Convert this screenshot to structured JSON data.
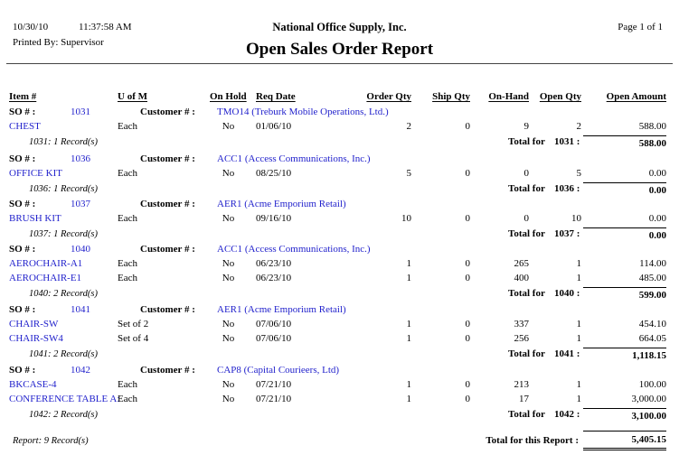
{
  "colors": {
    "link_blue": "#2222CC"
  },
  "header": {
    "date": "10/30/10",
    "time": "11:37:58 AM",
    "printed_by": "Printed By: Supervisor",
    "company": "National Office Supply, Inc.",
    "title": "Open Sales Order Report",
    "page": "Page 1 of 1"
  },
  "table": {
    "headers": [
      "Item #",
      "U of M",
      "On Hold",
      "Req Date",
      "Order Qty",
      "Ship Qty",
      "On-Hand",
      "Open Qty",
      "Open Amount"
    ],
    "labels": {
      "so": "SO # :",
      "customer": "Customer # :",
      "total_for": "Total for"
    },
    "sections": [
      {
        "so": "1031",
        "customer": "TMO14 (Treburk Mobile Operations, Ltd.)",
        "items": [
          {
            "item": "CHEST",
            "uofm": "Each",
            "on_hold": "No",
            "req_date": "01/06/10",
            "order_qty": "2",
            "ship_qty": "0",
            "on_hand": "9",
            "open_qty": "2",
            "open_amount": "588.00"
          }
        ],
        "records": "1031: 1 Record(s)",
        "total_ref": "1031 :",
        "total": "588.00"
      },
      {
        "so": "1036",
        "customer": "ACC1 (Access Communications, Inc.)",
        "items": [
          {
            "item": "OFFICE KIT",
            "uofm": "Each",
            "on_hold": "No",
            "req_date": "08/25/10",
            "order_qty": "5",
            "ship_qty": "0",
            "on_hand": "0",
            "open_qty": "5",
            "open_amount": "0.00"
          }
        ],
        "records": "1036: 1 Record(s)",
        "total_ref": "1036 :",
        "total": "0.00"
      },
      {
        "so": "1037",
        "customer": "AER1 (Acme Emporium Retail)",
        "items": [
          {
            "item": "BRUSH KIT",
            "uofm": "Each",
            "on_hold": "No",
            "req_date": "09/16/10",
            "order_qty": "10",
            "ship_qty": "0",
            "on_hand": "0",
            "open_qty": "10",
            "open_amount": "0.00"
          }
        ],
        "records": "1037: 1 Record(s)",
        "total_ref": "1037 :",
        "total": "0.00"
      },
      {
        "so": "1040",
        "customer": "ACC1 (Access Communications, Inc.)",
        "items": [
          {
            "item": "AEROCHAIR-A1",
            "uofm": "Each",
            "on_hold": "No",
            "req_date": "06/23/10",
            "order_qty": "1",
            "ship_qty": "0",
            "on_hand": "265",
            "open_qty": "1",
            "open_amount": "114.00"
          },
          {
            "item": "AEROCHAIR-E1",
            "uofm": "Each",
            "on_hold": "No",
            "req_date": "06/23/10",
            "order_qty": "1",
            "ship_qty": "0",
            "on_hand": "400",
            "open_qty": "1",
            "open_amount": "485.00"
          }
        ],
        "records": "1040: 2 Record(s)",
        "total_ref": "1040 :",
        "total": "599.00"
      },
      {
        "so": "1041",
        "customer": "AER1 (Acme Emporium Retail)",
        "items": [
          {
            "item": "CHAIR-SW",
            "uofm": "Set of 2",
            "on_hold": "No",
            "req_date": "07/06/10",
            "order_qty": "1",
            "ship_qty": "0",
            "on_hand": "337",
            "open_qty": "1",
            "open_amount": "454.10"
          },
          {
            "item": "CHAIR-SW4",
            "uofm": "Set of 4",
            "on_hold": "No",
            "req_date": "07/06/10",
            "order_qty": "1",
            "ship_qty": "0",
            "on_hand": "256",
            "open_qty": "1",
            "open_amount": "664.05"
          }
        ],
        "records": "1041: 2 Record(s)",
        "total_ref": "1041 :",
        "total": "1,118.15"
      },
      {
        "so": "1042",
        "customer": "CAP8 (Capital Courieers, Ltd)",
        "items": [
          {
            "item": "BKCASE-4",
            "uofm": "Each",
            "on_hold": "No",
            "req_date": "07/21/10",
            "order_qty": "1",
            "ship_qty": "0",
            "on_hand": "213",
            "open_qty": "1",
            "open_amount": "100.00"
          },
          {
            "item": "CONFERENCE TABLE A:",
            "uofm": "Each",
            "on_hold": "No",
            "req_date": "07/21/10",
            "order_qty": "1",
            "ship_qty": "0",
            "on_hand": "17",
            "open_qty": "1",
            "open_amount": "3,000.00"
          }
        ],
        "records": "1042: 2 Record(s)",
        "total_ref": "1042 :",
        "total": "3,100.00"
      }
    ]
  },
  "footer": {
    "records": "Report: 9 Record(s)",
    "total_label": "Total for this Report :",
    "total": "5,405.15"
  }
}
